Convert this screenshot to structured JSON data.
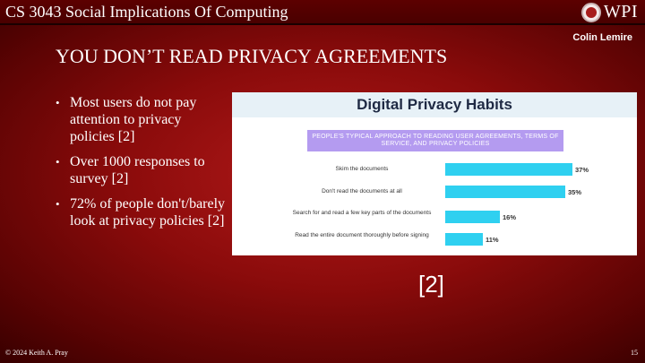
{
  "header": {
    "course_title": "CS 3043 Social Implications Of Computing",
    "logo_text": "WPI",
    "author": "Colin Lemire"
  },
  "slide": {
    "title": "YOU DON’T READ PRIVACY AGREEMENTS",
    "bullets": [
      "Most users do not pay attention to privacy policies [2]",
      "Over 1000 responses to survey [2]",
      "72% of people don't/barely look at privacy policies [2]"
    ],
    "citation": "[2]"
  },
  "chart_data": {
    "type": "bar",
    "title": "Digital Privacy Habits",
    "subtitle": "PEOPLE'S TYPICAL APPROACH TO READING USER AGREEMENTS, TERMS OF SERVICE, AND PRIVACY POLICIES",
    "categories": [
      "Skim the documents",
      "Don't read the documents at all",
      "Search for and read a few key parts of the documents",
      "Read the entire document thoroughly before signing"
    ],
    "values": [
      37,
      35,
      16,
      11
    ],
    "value_labels": [
      "37%",
      "35%",
      "16%",
      "11%"
    ],
    "xlim": [
      0,
      37
    ],
    "bar_color": "#2fd0f0",
    "orientation": "horizontal"
  },
  "footer": {
    "copyright": "© 2024 Keith A. Pray",
    "page_number": "15"
  },
  "colors": {
    "background": "#8a0b0b",
    "topbar": "#4a0000",
    "subtitle_box": "#b49bf0"
  }
}
